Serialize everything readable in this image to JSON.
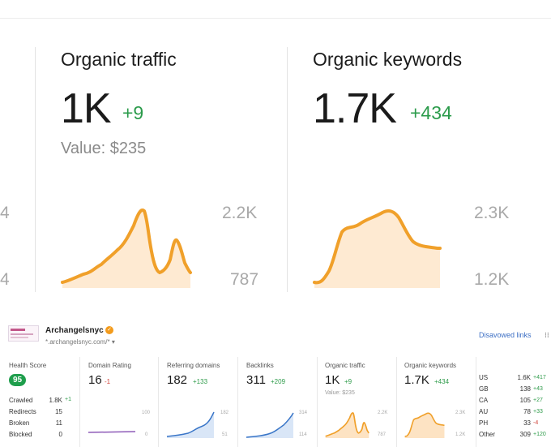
{
  "zoom": {
    "left_edge_labels": [
      "4",
      "4"
    ],
    "traffic": {
      "title": "Organic traffic",
      "value": "1K",
      "delta": "+9",
      "sub": "Value: $235",
      "axis_top": "2.2K",
      "axis_bottom": "787"
    },
    "keywords": {
      "title": "Organic keywords",
      "value": "1.7K",
      "delta": "+434",
      "axis_top": "2.3K",
      "axis_bottom": "1.2K"
    }
  },
  "site": {
    "name": "Archangelsnyc",
    "url": "*.archangelsnyc.com/*",
    "disavowed": "Disavowed links",
    "menu_icon": "more-dots-icon"
  },
  "cards": {
    "health": {
      "title": "Health Score",
      "score": "95",
      "rows": [
        {
          "label": "Crawled",
          "value": "1.8K",
          "delta": "+1"
        },
        {
          "label": "Redirects",
          "value": "15",
          "delta": ""
        },
        {
          "label": "Broken",
          "value": "11",
          "delta": ""
        },
        {
          "label": "Blocked",
          "value": "0",
          "delta": ""
        }
      ]
    },
    "dr": {
      "title": "Domain Rating",
      "value": "16",
      "delta": "-1",
      "axis_top": "100",
      "axis_bottom": "0"
    },
    "rd": {
      "title": "Referring domains",
      "value": "182",
      "delta": "+133",
      "axis_top": "182",
      "axis_bottom": "51"
    },
    "bl": {
      "title": "Backlinks",
      "value": "311",
      "delta": "+209",
      "axis_top": "314",
      "axis_bottom": "114"
    },
    "ot": {
      "title": "Organic traffic",
      "value": "1K",
      "delta": "+9",
      "sub": "Value: $235",
      "axis_top": "2.2K",
      "axis_bottom": "787"
    },
    "ok": {
      "title": "Organic keywords",
      "value": "1.7K",
      "delta": "+434",
      "axis_top": "2.3K",
      "axis_bottom": "1.2K"
    }
  },
  "countries": [
    {
      "code": "US",
      "value": "1.6K",
      "delta": "+417"
    },
    {
      "code": "GB",
      "value": "138",
      "delta": "+43"
    },
    {
      "code": "CA",
      "value": "105",
      "delta": "+27"
    },
    {
      "code": "AU",
      "value": "78",
      "delta": "+33"
    },
    {
      "code": "PH",
      "value": "33",
      "delta": "-4"
    },
    {
      "code": "Other",
      "value": "309",
      "delta": "+120"
    }
  ],
  "colors": {
    "traffic_line": "#f0a02a",
    "area_fill": "#fde3c3",
    "blue_line": "#3a76c8",
    "purple_line": "#8e5bb8",
    "green": "#2e9b4a",
    "red": "#d0443a"
  }
}
